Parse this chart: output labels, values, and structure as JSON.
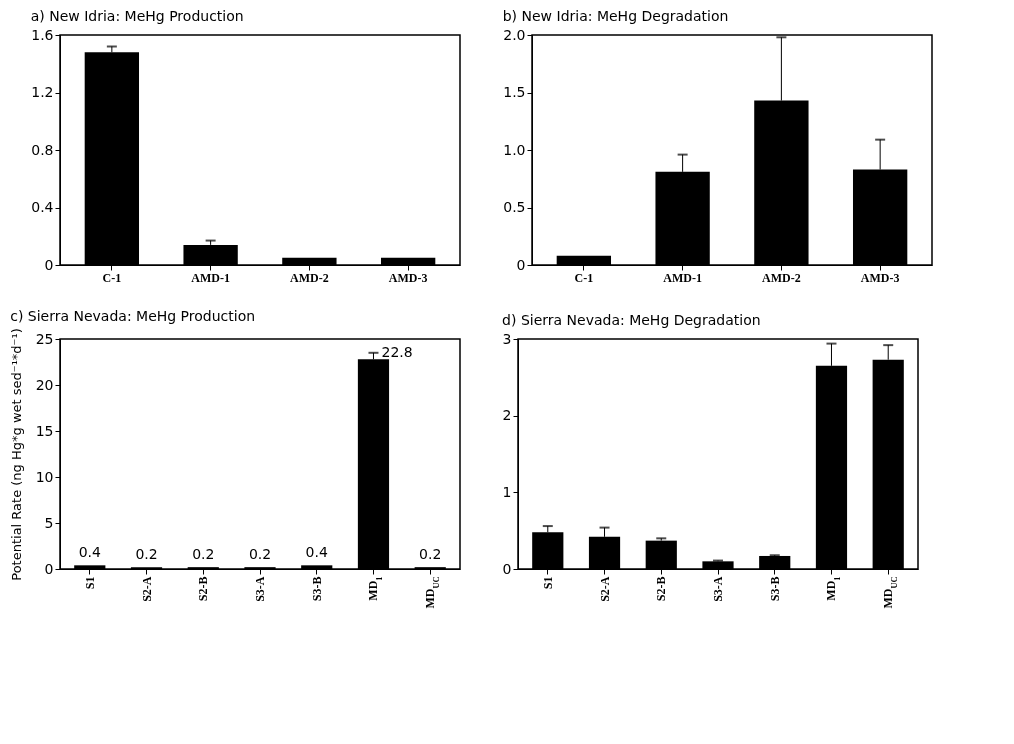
{
  "chart_data": [
    {
      "type": "bar",
      "title": "a) New Idria: MeHg Production",
      "categories": [
        "C-1",
        "AMD-1",
        "AMD-2",
        "AMD-3"
      ],
      "values": [
        1.48,
        0.14,
        0.05,
        0.05
      ],
      "color": "#000000",
      "errors": [
        [
          1.48,
          1.52
        ],
        [
          0.14,
          0.17
        ],
        null,
        null
      ],
      "ylim": [
        0,
        1.6
      ],
      "yticks": [
        0,
        0.4,
        0.8,
        1.2,
        1.6
      ],
      "grid": false
    },
    {
      "type": "bar",
      "title": "b) New Idria: MeHg Degradation",
      "categories": [
        "C-1",
        "AMD-1",
        "AMD-2",
        "AMD-3"
      ],
      "values": [
        0.08,
        0.81,
        1.43,
        0.83
      ],
      "color": "#000000",
      "errors": [
        null,
        [
          0.81,
          0.96
        ],
        [
          1.43,
          1.98
        ],
        [
          0.83,
          1.09
        ]
      ],
      "ylim": [
        0,
        2.0
      ],
      "yticks": [
        0,
        0.5,
        {
          "value": 1.0,
          "label": "1.0"
        },
        1.5,
        {
          "value": 2.0,
          "label": "2.0"
        }
      ],
      "grid": false
    },
    {
      "type": "bar",
      "title": "c) Sierra Nevada: MeHg Production",
      "ylabel": "Potential Rate (ng Hg*g wet sed⁻¹*d⁻¹)",
      "categories": [
        "S1",
        "S2-A",
        "S2-B",
        "S3-A",
        "S3-B",
        "MD$_{1}$",
        "MD$_{UC}$"
      ],
      "values": [
        0.4,
        0.2,
        0.2,
        0.2,
        0.4,
        22.8,
        0.2
      ],
      "color": "#000000",
      "errors": [
        null,
        null,
        null,
        null,
        null,
        [
          22.8,
          23.5
        ],
        null
      ],
      "data_labels": true,
      "ylim": [
        0,
        25
      ],
      "yticks": [
        0,
        5,
        10,
        15,
        20,
        25
      ],
      "grid": false
    },
    {
      "type": "bar",
      "title": "d) Sierra Nevada: MeHg Degradation",
      "categories": [
        "S1",
        "S2-A",
        "S2-B",
        "S3-A",
        "S3-B",
        "MD$_{1}$",
        "MD$_{UC}$"
      ],
      "values": [
        0.48,
        0.42,
        0.37,
        0.1,
        0.17,
        2.65,
        2.73
      ],
      "color": "#000000",
      "errors": [
        [
          0.48,
          0.56
        ],
        [
          0.42,
          0.54
        ],
        [
          0.37,
          0.4
        ],
        [
          0.1,
          0.11
        ],
        [
          0.17,
          0.18
        ],
        [
          2.65,
          2.94
        ],
        [
          2.73,
          2.92
        ]
      ],
      "ylim": [
        0,
        3
      ],
      "yticks": [
        0,
        1,
        2,
        3
      ],
      "grid": false
    }
  ]
}
